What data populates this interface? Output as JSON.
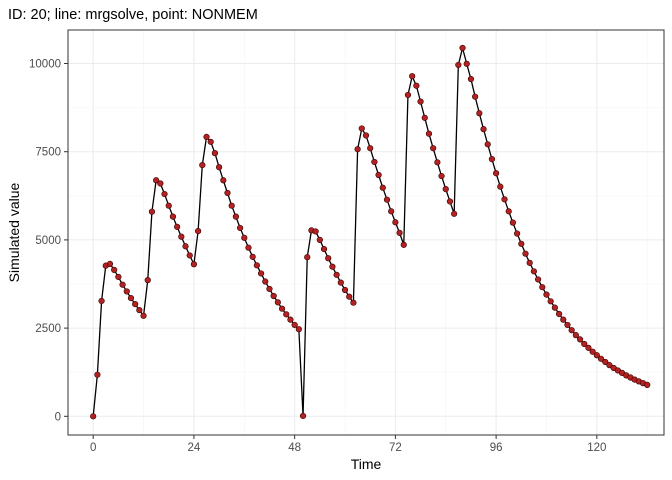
{
  "chart_data": {
    "type": "line",
    "title": "ID: 20; line: mrgsolve, point: NONMEM",
    "xlabel": "Time",
    "ylabel": "Simulated value",
    "xlim": [
      -6,
      136
    ],
    "ylim": [
      -530,
      10950
    ],
    "x_ticks": [
      0,
      24,
      48,
      72,
      96,
      120
    ],
    "y_ticks": [
      0,
      2500,
      5000,
      7500,
      10000
    ],
    "x_tick_labels": [
      "0",
      "24",
      "48",
      "72",
      "96",
      "120"
    ],
    "y_tick_labels": [
      "0",
      "2500",
      "5000",
      "7500",
      "10000"
    ],
    "grid": true,
    "legend": "none",
    "line_color": "#000000",
    "point_color": "#b22222",
    "series": [
      {
        "x": [
          0,
          1,
          2,
          3,
          4,
          5,
          6,
          7,
          8,
          9,
          10,
          11,
          12,
          13,
          14,
          15,
          16,
          17,
          18,
          19,
          20,
          21,
          22,
          23,
          24,
          25,
          26,
          27,
          28,
          29,
          30,
          31,
          32,
          33,
          34,
          35,
          36,
          37,
          38,
          39,
          40,
          41,
          42,
          43,
          44,
          45,
          46,
          47,
          48,
          49,
          50,
          51,
          52,
          53,
          54,
          55,
          56,
          57,
          58,
          59,
          60,
          61,
          62,
          63,
          64,
          65,
          66,
          67,
          68,
          69,
          70,
          71,
          72,
          73,
          74,
          75,
          76,
          77,
          78,
          79,
          80,
          81,
          82,
          83,
          84,
          85,
          86,
          87,
          88,
          89,
          90,
          91,
          92,
          93,
          94,
          95,
          96,
          97,
          98,
          99,
          100,
          101,
          102,
          103,
          104,
          105,
          106,
          107,
          108,
          109,
          110,
          111,
          112,
          113,
          114,
          115,
          116,
          117,
          118,
          119,
          120,
          121,
          122,
          123,
          124,
          125,
          126,
          127,
          128,
          129,
          130,
          131,
          132
        ],
        "y": [
          0,
          1180,
          3270,
          4270,
          4320,
          4150,
          3950,
          3730,
          3540,
          3350,
          3180,
          3010,
          2850,
          3860,
          5800,
          6690,
          6600,
          6300,
          5970,
          5660,
          5370,
          5090,
          4820,
          4560,
          4310,
          5250,
          7120,
          7920,
          7780,
          7460,
          7060,
          6690,
          6330,
          5970,
          5660,
          5340,
          5060,
          4780,
          4520,
          4280,
          4050,
          3820,
          3610,
          3410,
          3230,
          3050,
          2890,
          2740,
          2590,
          2470,
          10,
          4510,
          5270,
          5240,
          5000,
          4740,
          4480,
          4240,
          4010,
          3790,
          3580,
          3390,
          3220,
          7570,
          8160,
          7960,
          7600,
          7210,
          6840,
          6480,
          6140,
          5810,
          5500,
          5200,
          4860,
          9110,
          9640,
          9370,
          8920,
          8460,
          8010,
          7600,
          7200,
          6810,
          6440,
          6090,
          5740,
          9960,
          10440,
          9990,
          9560,
          9060,
          8590,
          8140,
          7710,
          7290,
          6890,
          6510,
          6150,
          5810,
          5490,
          5180,
          4890,
          4610,
          4350,
          4110,
          3880,
          3660,
          3450,
          3260,
          3080,
          2900,
          2740,
          2590,
          2440,
          2300,
          2180,
          2050,
          1940,
          1830,
          1730,
          1630,
          1540,
          1450,
          1370,
          1300,
          1230,
          1160,
          1100,
          1040,
          990,
          940,
          890
        ]
      }
    ]
  }
}
